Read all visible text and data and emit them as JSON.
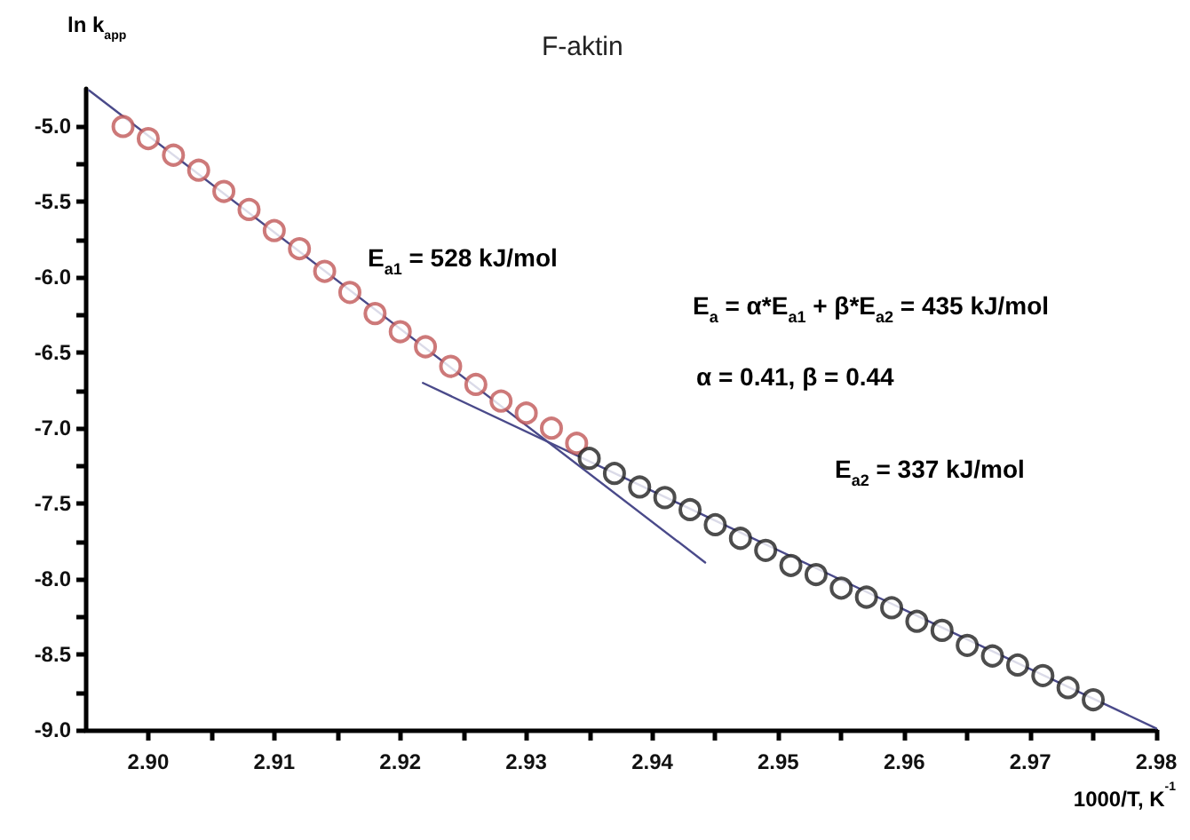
{
  "chart_data": {
    "type": "scatter",
    "title": "F-aktin",
    "xlabel": "1000/T, K$^{-1}$",
    "ylabel": "ln k$_{app}$",
    "xlim": [
      2.895,
      2.98
    ],
    "xticks": [
      {
        "value": 2.9,
        "label": "2.90"
      },
      {
        "value": 2.905,
        "label": null
      },
      {
        "value": 2.91,
        "label": "2.91"
      },
      {
        "value": 2.915,
        "label": null
      },
      {
        "value": 2.92,
        "label": "2.92"
      },
      {
        "value": 2.925,
        "label": null
      },
      {
        "value": 2.93,
        "label": "2.93"
      },
      {
        "value": 2.935,
        "label": null
      },
      {
        "value": 2.94,
        "label": "2.94"
      },
      {
        "value": 2.945,
        "label": null
      },
      {
        "value": 2.95,
        "label": "2.95"
      },
      {
        "value": 2.955,
        "label": null
      },
      {
        "value": 2.96,
        "label": "2.96"
      },
      {
        "value": 2.965,
        "label": null
      },
      {
        "value": 2.97,
        "label": "2.97"
      },
      {
        "value": 2.975,
        "label": null
      },
      {
        "value": 2.98,
        "label": "2.98"
      }
    ],
    "ylim": [
      -9,
      -4.75
    ],
    "yticks": [
      {
        "value": -9,
        "label": "-9.0"
      },
      {
        "value": -8.75,
        "label": null
      },
      {
        "value": -8.5,
        "label": "-8.5"
      },
      {
        "value": -8.25,
        "label": null
      },
      {
        "value": -8,
        "label": "-8.0"
      },
      {
        "value": -7.75,
        "label": null
      },
      {
        "value": -7.5,
        "label": "-7.5"
      },
      {
        "value": -7.25,
        "label": null
      },
      {
        "value": -7,
        "label": "-7.0"
      },
      {
        "value": -6.75,
        "label": null
      },
      {
        "value": -6.5,
        "label": "-6.5"
      },
      {
        "value": -6.25,
        "label": null
      },
      {
        "value": -6,
        "label": "-6.0"
      },
      {
        "value": -5.75,
        "label": null
      },
      {
        "value": -5.5,
        "label": "-5.5"
      },
      {
        "value": -5.25,
        "label": null
      },
      {
        "value": -5,
        "label": "-5.0"
      }
    ],
    "grid": false,
    "marker": "circle",
    "series": [
      {
        "color": "#c05858",
        "x": [
          2.898,
          2.9,
          2.902,
          2.904,
          2.906,
          2.908,
          2.91,
          2.912,
          2.914,
          2.916,
          2.918,
          2.92,
          2.922,
          2.924,
          2.926,
          2.928,
          2.93,
          2.932,
          2.934
        ],
        "values": [
          -5.0,
          -5.08,
          -5.19,
          -5.29,
          -5.43,
          -5.55,
          -5.69,
          -5.81,
          -5.96,
          -6.1,
          -6.24,
          -6.36,
          -6.46,
          -6.59,
          -6.71,
          -6.82,
          -6.9,
          -7.0,
          -7.1
        ]
      },
      {
        "color": "#202020",
        "x": [
          2.935,
          2.937,
          2.939,
          2.941,
          2.943,
          2.945,
          2.947,
          2.949,
          2.951,
          2.953,
          2.955,
          2.957,
          2.959,
          2.961,
          2.963,
          2.965,
          2.967,
          2.969,
          2.971,
          2.973,
          2.975
        ],
        "values": [
          -7.2,
          -7.3,
          -7.39,
          -7.46,
          -7.54,
          -7.64,
          -7.73,
          -7.81,
          -7.91,
          -7.97,
          -8.06,
          -8.12,
          -8.19,
          -8.28,
          -8.34,
          -8.44,
          -8.51,
          -8.57,
          -8.64,
          -8.72,
          -8.8
        ]
      },
      {
        "type": "line",
        "marker": "none",
        "color": "#4a4a8a",
        "x": [
          2.8953,
          2.9442
        ],
        "values": [
          -4.76,
          -7.89
        ]
      },
      {
        "type": "line",
        "marker": "none",
        "color": "#4a4a8a",
        "x": [
          2.9218,
          2.98
        ],
        "values": [
          -6.7,
          -8.99
        ]
      }
    ],
    "annotations": [
      "E$_{a1}$ = 528 kJ/mol",
      "E$_{a}$ = α*E$_{a1}$ + β*E$_{a2}$ = 435 kJ/mol",
      "α = 0.41, β = 0.44",
      "E$_{a2}$ = 337 kJ/mol"
    ]
  }
}
